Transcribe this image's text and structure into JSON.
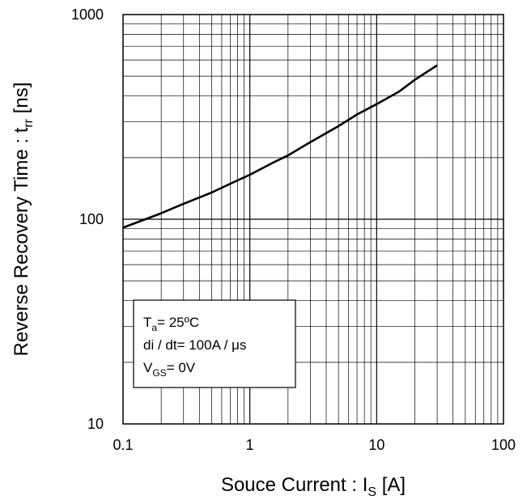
{
  "chart_data": {
    "type": "line",
    "title": "",
    "x_scale": "log",
    "y_scale": "log",
    "xlim": [
      0.1,
      100
    ],
    "ylim": [
      10,
      1000
    ],
    "grid": true,
    "x_ticks": [
      "0.1",
      "1",
      "10",
      "100"
    ],
    "y_ticks": [
      "10",
      "100",
      "1000"
    ],
    "xlabel": {
      "main": "Souce Current : I",
      "sub": "S",
      "unit": " [A]"
    },
    "ylabel": {
      "main": "Reverse Recovery Time : t",
      "sub": "rr",
      "unit": " [ns]"
    },
    "annotation": {
      "line1": {
        "main": "T",
        "sub": "a",
        "rest": "= 25ºC"
      },
      "line2": {
        "main": "di / dt= 100A / μs"
      },
      "line3": {
        "main": "V",
        "sub": "GS",
        "rest": "= 0V"
      }
    },
    "series": [
      {
        "color": "#000000",
        "x": [
          0.1,
          0.15,
          0.2,
          0.3,
          0.5,
          0.7,
          1,
          1.5,
          2,
          3,
          5,
          7,
          10,
          15,
          20,
          30
        ],
        "y": [
          91,
          100,
          107,
          119,
          135,
          149,
          165,
          188,
          205,
          238,
          285,
          325,
          365,
          420,
          480,
          565
        ]
      }
    ]
  }
}
